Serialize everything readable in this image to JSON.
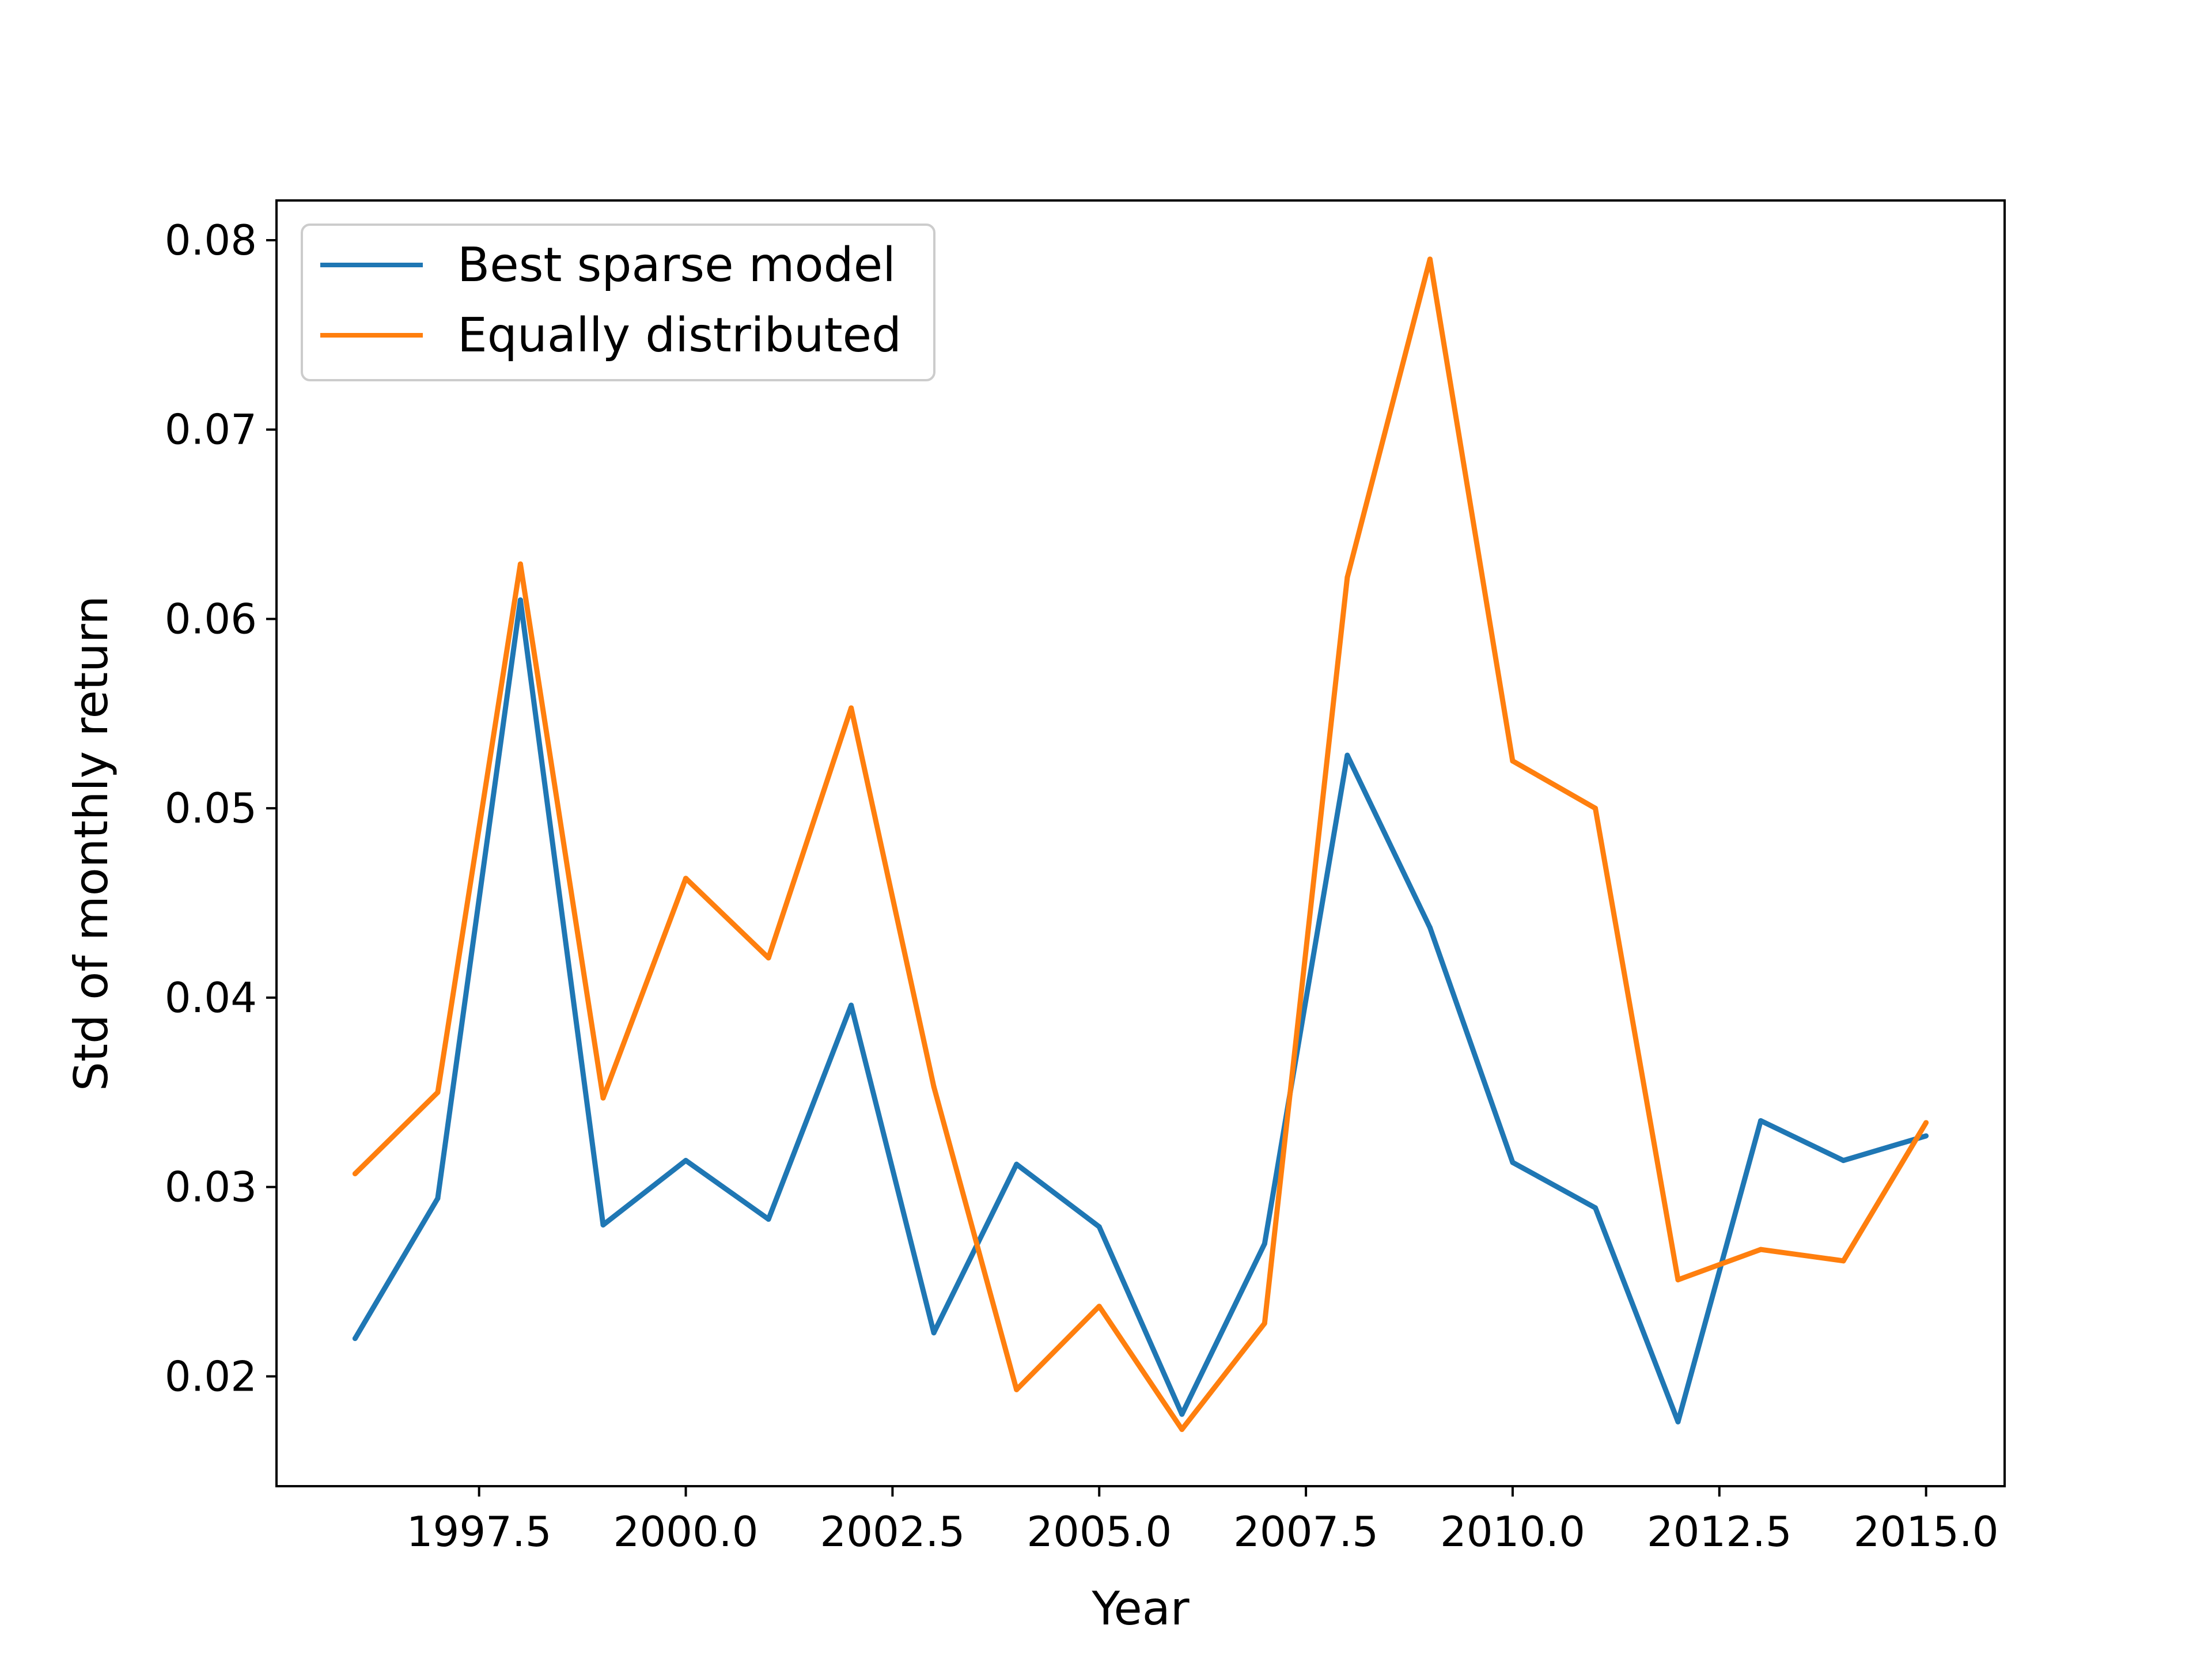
{
  "chart_data": {
    "type": "line",
    "title": "",
    "xlabel": "Year",
    "ylabel": "Std of monthly return",
    "x": [
      1996,
      1997,
      1998,
      1999,
      2000,
      2001,
      2002,
      2003,
      2004,
      2005,
      2006,
      2007,
      2008,
      2009,
      2010,
      2011,
      2012,
      2013,
      2014,
      2015
    ],
    "series": [
      {
        "name": "Best sparse model",
        "color": "#1f77b4",
        "values": [
          0.022,
          0.0294,
          0.061,
          0.028,
          0.0314,
          0.0283,
          0.0396,
          0.0223,
          0.0312,
          0.0279,
          0.018,
          0.027,
          0.0528,
          0.0437,
          0.0313,
          0.0289,
          0.0176,
          0.0335,
          0.0314,
          0.0327
        ]
      },
      {
        "name": "Equally distributed",
        "color": "#ff7f0e",
        "values": [
          0.0307,
          0.035,
          0.0629,
          0.0347,
          0.0463,
          0.0421,
          0.0553,
          0.0353,
          0.0193,
          0.0237,
          0.0172,
          0.0228,
          0.0622,
          0.079,
          0.0525,
          0.05,
          0.0251,
          0.0267,
          0.0261,
          0.0334
        ]
      }
    ],
    "xticks": [
      1997.5,
      2000.0,
      2002.5,
      2005.0,
      2007.5,
      2010.0,
      2012.5,
      2015.0
    ],
    "xtick_labels": [
      "1997.5",
      "2000.0",
      "2002.5",
      "2005.0",
      "2007.5",
      "2010.0",
      "2012.5",
      "2015.0"
    ],
    "yticks": [
      0.02,
      0.03,
      0.04,
      0.05,
      0.06,
      0.07,
      0.08
    ],
    "ytick_labels": [
      "0.02",
      "0.03",
      "0.04",
      "0.05",
      "0.06",
      "0.07",
      "0.08"
    ],
    "xlim": [
      1995.05,
      2015.95
    ],
    "ylim": [
      0.0142,
      0.0821
    ],
    "grid": false,
    "legend_position": "top-left"
  }
}
